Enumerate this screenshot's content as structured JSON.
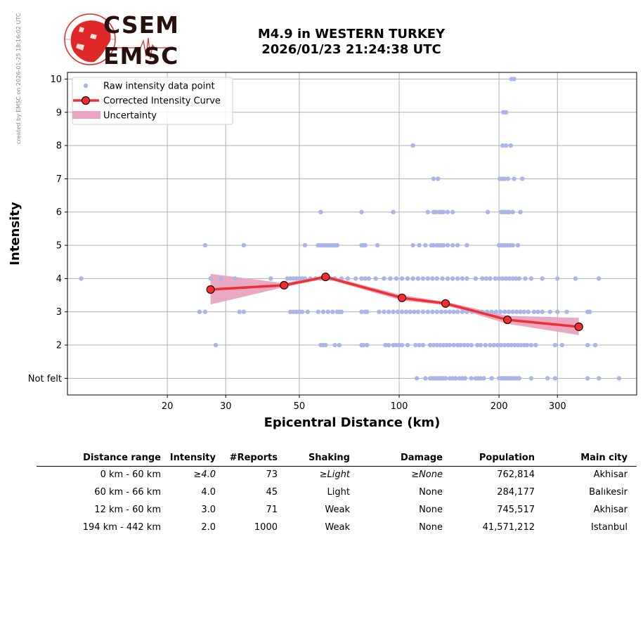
{
  "credit": "created by EMSC on 2026-01-25 18:16:02 UTC",
  "logo": {
    "top_text": "CSEM",
    "bottom_text": "EMSC"
  },
  "title_line1": "M4.9 in WESTERN TURKEY",
  "title_line2": "2026/01/23 21:24:38 UTC",
  "colors": {
    "raw": "#aab6e6",
    "curve": "#f03030",
    "uncertainty": "#e8a4c0",
    "grid": "#b0b0b0"
  },
  "chart_data": {
    "type": "scatter",
    "xlabel": "Epicentral Distance (km)",
    "ylabel": "Intensity",
    "xscale": "log",
    "xlim": [
      10,
      520
    ],
    "ylim": [
      0.5,
      10.2
    ],
    "xticks": [
      20,
      30,
      50,
      100,
      200,
      300
    ],
    "xtick_labels": [
      "20",
      "30",
      "50",
      "100",
      "200",
      "300"
    ],
    "yticks": [
      1,
      2,
      3,
      4,
      5,
      6,
      7,
      8,
      9,
      10
    ],
    "ytick_labels": [
      "Not felt",
      "2",
      "3",
      "4",
      "5",
      "6",
      "7",
      "8",
      "9",
      "10"
    ],
    "grid": true,
    "legend_position": "top-left",
    "legend": [
      "Raw intensity data point",
      "Corrected Intensity Curve",
      "Uncertainty"
    ],
    "series": [
      {
        "name": "Raw intensity data point",
        "rows": [
          {
            "y": 1,
            "x": [
              113,
              120,
              124,
              126,
              128,
              130,
              132,
              134,
              136,
              138,
              142,
              145,
              148,
              152,
              155,
              158,
              165,
              170,
              173,
              176,
              180,
              190,
              200,
              203,
              206,
              209,
              212,
              215,
              218,
              222,
              226,
              230,
              250,
              280,
              295,
              370,
              400,
              460
            ]
          },
          {
            "y": 2,
            "x": [
              28,
              58,
              59,
              60,
              64,
              66,
              77,
              78,
              80,
              91,
              93,
              96,
              98,
              100,
              102,
              106,
              112,
              115,
              118,
              124,
              127,
              130,
              133,
              136,
              139,
              142,
              146,
              150,
              153,
              157,
              161,
              165,
              172,
              176,
              182,
              188,
              193,
              198,
              203,
              208,
              213,
              218,
              223,
              228,
              233,
              238,
              243,
              250,
              258,
              295,
              310,
              370,
              390
            ]
          },
          {
            "y": 3,
            "x": [
              25,
              26,
              33,
              34,
              47,
              48,
              49,
              50,
              51,
              53,
              57,
              59,
              61,
              63,
              65,
              66,
              67,
              77,
              79,
              80,
              87,
              90,
              93,
              96,
              99,
              102,
              105,
              108,
              111,
              114,
              118,
              122,
              126,
              130,
              134,
              138,
              142,
              146,
              150,
              155,
              160,
              166,
              172,
              178,
              184,
              190,
              196,
              202,
              208,
              214,
              220,
              226,
              232,
              238,
              245,
              255,
              262,
              270,
              285,
              300,
              320,
              370,
              375
            ]
          },
          {
            "y": 4,
            "x": [
              11,
              27,
              29,
              32,
              41,
              46,
              47,
              48,
              49,
              50,
              51,
              52,
              54,
              56,
              58,
              60,
              62,
              64,
              67,
              70,
              74,
              77,
              79,
              81,
              85,
              90,
              94,
              98,
              102,
              106,
              110,
              114,
              118,
              122,
              126,
              130,
              135,
              140,
              145,
              150,
              155,
              160,
              170,
              178,
              183,
              188,
              195,
              200,
              205,
              210,
              215,
              220,
              225,
              230,
              240,
              250,
              270,
              300,
              340,
              400
            ]
          },
          {
            "y": 5,
            "x": [
              26,
              34,
              52,
              57,
              58,
              59,
              60,
              61,
              62,
              63,
              64,
              65,
              77,
              78,
              79,
              86,
              110,
              115,
              120,
              125,
              127,
              130,
              132,
              134,
              136,
              140,
              145,
              150,
              160,
              200,
              203,
              206,
              209,
              212,
              216,
              220,
              228
            ]
          },
          {
            "y": 6,
            "x": [
              58,
              77,
              96,
              122,
              127,
              129,
              132,
              134,
              136,
              140,
              145,
              185,
              203,
              206,
              209,
              212,
              215,
              220,
              232
            ]
          },
          {
            "y": 7,
            "x": [
              127,
              131,
              201,
              205,
              208,
              213,
              222,
              235
            ]
          },
          {
            "y": 8,
            "x": [
              110,
              205,
              210,
              217
            ]
          },
          {
            "y": 9,
            "x": [
              206,
              210
            ]
          },
          {
            "y": 10,
            "x": [
              218,
              222
            ]
          }
        ]
      },
      {
        "name": "Corrected Intensity Curve",
        "x": [
          27,
          45,
          60,
          102,
          138,
          212,
          348
        ],
        "y": [
          3.67,
          3.8,
          4.05,
          3.42,
          3.25,
          2.76,
          2.55
        ]
      },
      {
        "name": "Uncertainty",
        "x": [
          27,
          45,
          60,
          102,
          138,
          212,
          348
        ],
        "y_low": [
          3.22,
          3.74,
          4.0,
          3.34,
          3.2,
          2.64,
          2.3
        ],
        "y_high": [
          4.14,
          3.86,
          4.1,
          3.5,
          3.3,
          2.88,
          2.82
        ]
      }
    ]
  },
  "table": {
    "headers": [
      "Distance range",
      "Intensity",
      "#Reports",
      "Shaking",
      "Damage",
      "Population",
      "Main city"
    ],
    "rows": [
      {
        "distance": "0 km -   60 km",
        "intensity": "≥4.0",
        "reports": "73",
        "shaking": "≥Light",
        "damage": "≥None",
        "population": "762,814",
        "city": "Akhisar"
      },
      {
        "distance": "60 km -   66 km",
        "intensity": "4.0",
        "reports": "45",
        "shaking": "Light",
        "damage": "None",
        "population": "284,177",
        "city": "Balıkesir"
      },
      {
        "distance": "12 km -   60 km",
        "intensity": "3.0",
        "reports": "71",
        "shaking": "Weak",
        "damage": "None",
        "population": "745,517",
        "city": "Akhisar"
      },
      {
        "distance": "194 km -  442 km",
        "intensity": "2.0",
        "reports": "1000",
        "shaking": "Weak",
        "damage": "None",
        "population": "41,571,212",
        "city": "Istanbul"
      }
    ]
  }
}
